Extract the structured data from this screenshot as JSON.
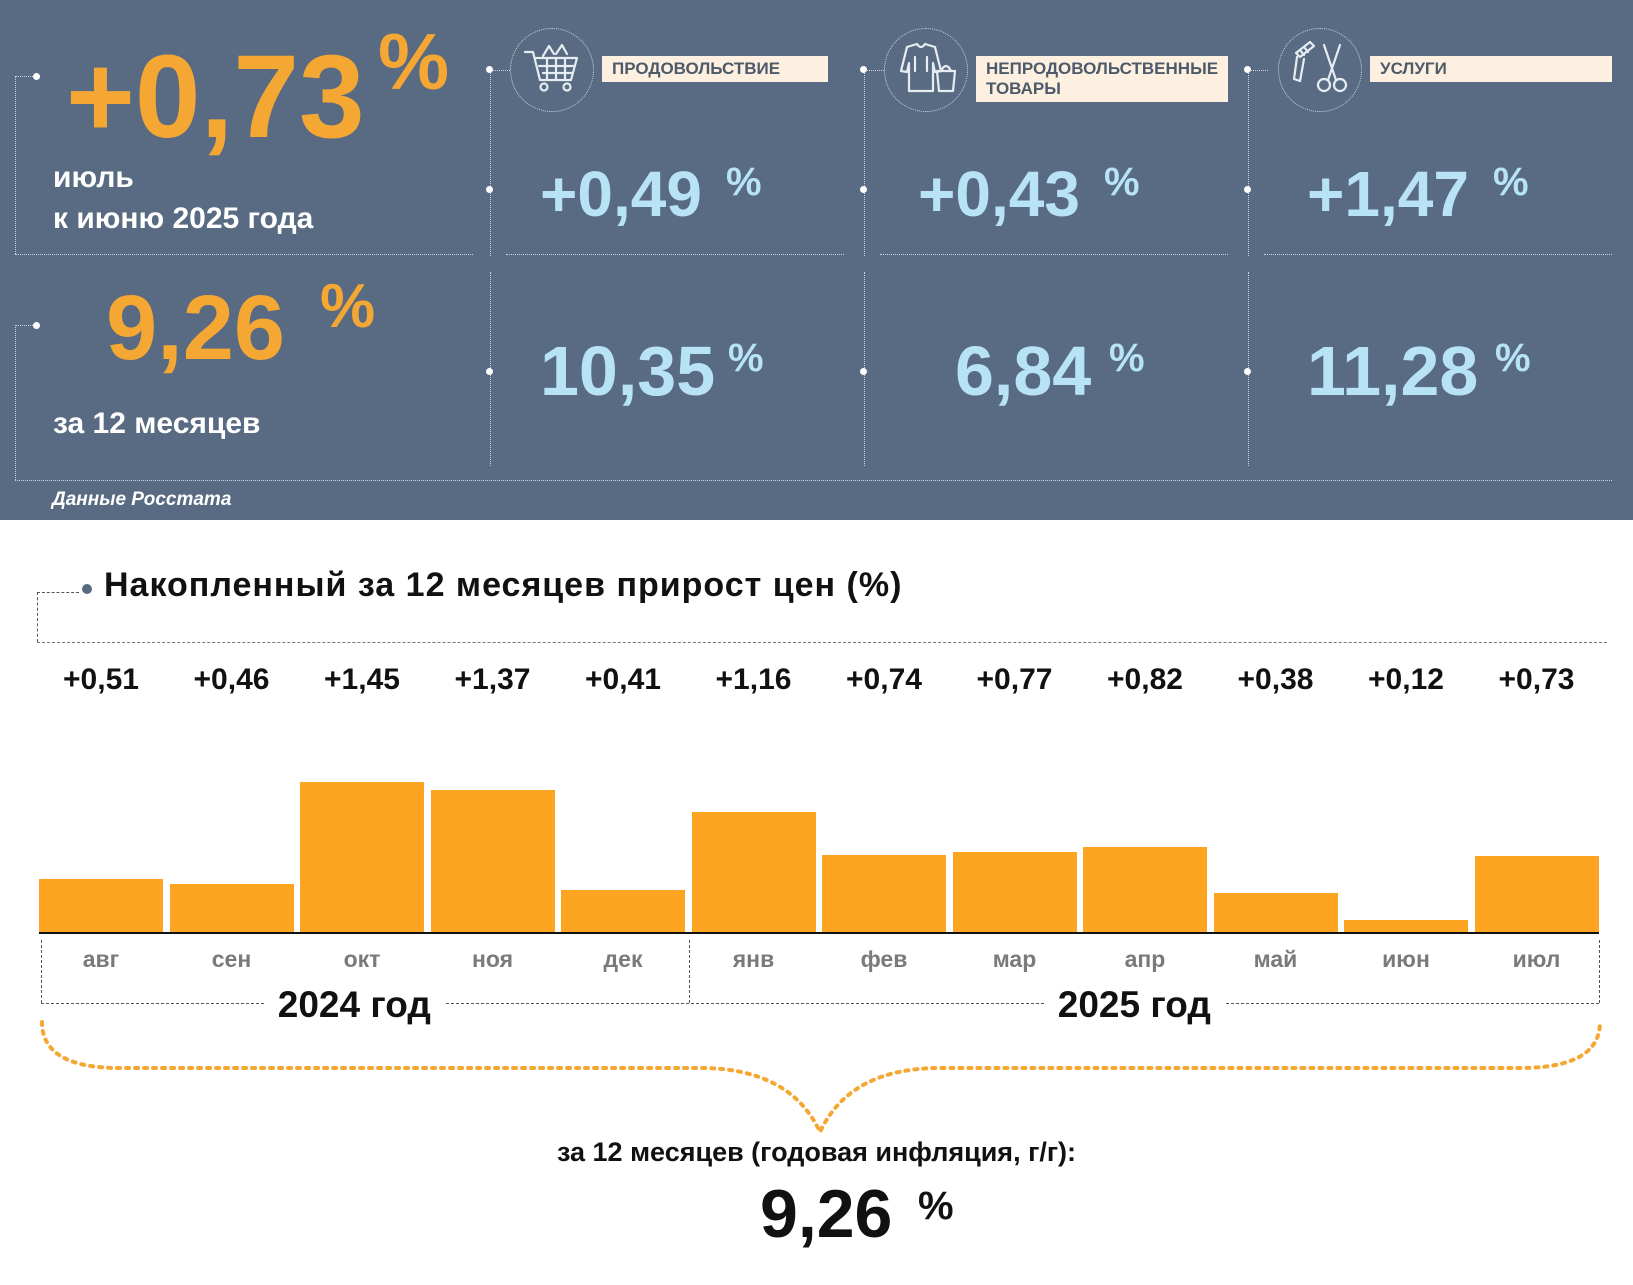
{
  "header": {
    "monthly_value": "+0,73",
    "monthly_unit": "%",
    "monthly_label_line1": "июль",
    "monthly_label_line2": "к июню 2025 года",
    "annual_value": "9,26",
    "annual_unit": "%",
    "annual_label": "за 12 месяцев",
    "source": "Данные Росстата"
  },
  "categories": [
    {
      "name_line1": "ПРОДОВОЛЬСТВИЕ",
      "name_line2": "",
      "icon": "shopping-cart-icon",
      "monthly": "+0,49",
      "annual": "10,35",
      "unit": "%"
    },
    {
      "name_line1": "НЕПРОДОВОЛЬСТВЕННЫЕ",
      "name_line2": "ТОВАРЫ",
      "icon": "clothing-icon",
      "monthly": "+0,43",
      "annual": "6,84",
      "unit": "%"
    },
    {
      "name_line1": "УСЛУГИ",
      "name_line2": "",
      "icon": "scissors-comb-icon",
      "monthly": "+1,47",
      "annual": "11,28",
      "unit": "%"
    }
  ],
  "colors": {
    "panel": "#586b82",
    "accent_orange": "#f5a733",
    "value_blue": "#b8e2f5",
    "bar": "#fda521",
    "label_box": "#fdf0e0"
  },
  "chart_data": {
    "type": "bar",
    "title": "Накопленный за 12 месяцев прирост цен (%)",
    "categories": [
      "авг",
      "сен",
      "окт",
      "ноя",
      "дек",
      "янв",
      "фев",
      "мар",
      "апр",
      "май",
      "июн",
      "июл"
    ],
    "values": [
      0.51,
      0.46,
      1.45,
      1.37,
      0.41,
      1.16,
      0.74,
      0.77,
      0.82,
      0.38,
      0.12,
      0.73
    ],
    "value_labels": [
      "+0,51",
      "+0,46",
      "+1,45",
      "+1,37",
      "+0,41",
      "+1,16",
      "+0,74",
      "+0,77",
      "+0,82",
      "+0,38",
      "+0,12",
      "+0,73"
    ],
    "year_groups": [
      {
        "label": "2024 год",
        "months": 5
      },
      {
        "label": "2025 год",
        "months": 7
      }
    ],
    "ylim": [
      0,
      1.45
    ],
    "grid": false,
    "legend": "none",
    "total_label": "за 12 месяцев (годовая инфляция, г/г):",
    "total_value": "9,26",
    "total_unit": "%"
  }
}
